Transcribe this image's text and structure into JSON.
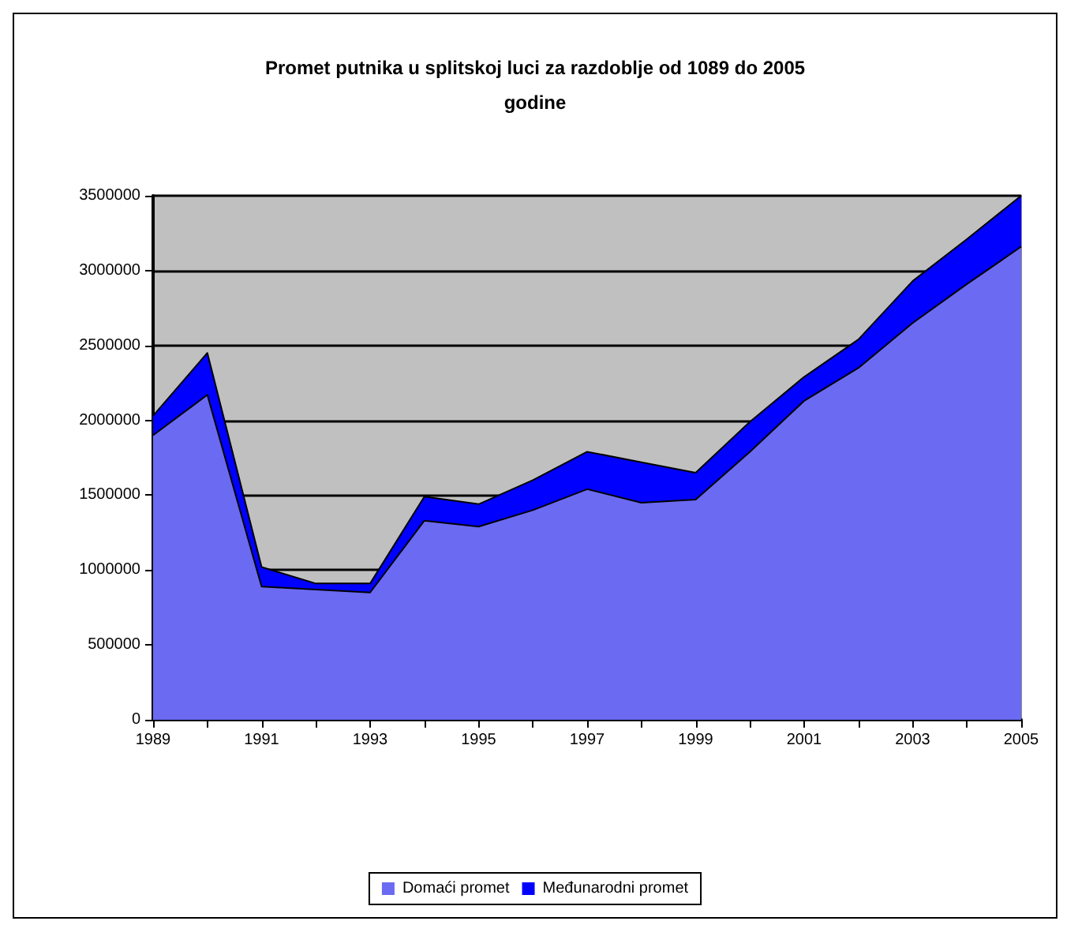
{
  "chart_data": {
    "type": "area",
    "title": "Promet putnika u splitskoj luci za razdoblje od 1089 do 2005 godine",
    "stacked": true,
    "categories": [
      "1989",
      null,
      "1991",
      null,
      "1993",
      null,
      "1995",
      null,
      "1997",
      null,
      "1999",
      null,
      "2001",
      null,
      "2003",
      null,
      "2005"
    ],
    "series": [
      {
        "name": "Domaći promet",
        "color": "#6a6af2",
        "values": [
          1900000,
          2170000,
          890000,
          870000,
          850000,
          1330000,
          1290000,
          1400000,
          1540000,
          1450000,
          1470000,
          1790000,
          2130000,
          2350000,
          2650000,
          2910000,
          3160000
        ]
      },
      {
        "name": "Međunarodni promet",
        "color": "#0000ff",
        "values": [
          130000,
          280000,
          130000,
          40000,
          60000,
          160000,
          150000,
          200000,
          250000,
          270000,
          180000,
          200000,
          160000,
          190000,
          280000,
          300000,
          340000
        ]
      }
    ],
    "ylim": [
      0,
      3500000
    ],
    "yticks": [
      0,
      500000,
      1000000,
      1500000,
      2000000,
      2500000,
      3000000,
      3500000
    ],
    "grid": "y",
    "legend": "bottom"
  }
}
